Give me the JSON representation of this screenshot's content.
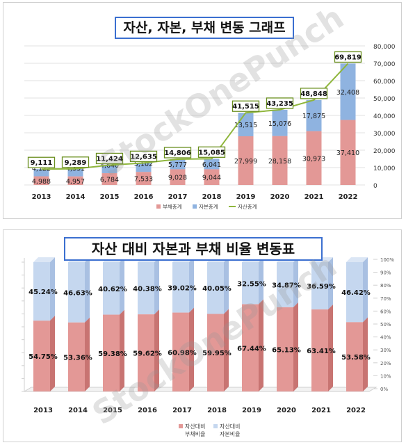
{
  "watermark": "StockOnePunch",
  "chart_data": [
    {
      "type": "bar",
      "stacked": true,
      "title": "자산, 자본, 부채 변동 그래프",
      "categories": [
        "2013",
        "2014",
        "2015",
        "2016",
        "2017",
        "2018",
        "2019",
        "2020",
        "2021",
        "2022"
      ],
      "ylim": [
        0,
        80000
      ],
      "yticks": [
        "0",
        "10,000",
        "20,000",
        "30,000",
        "40,000",
        "50,000",
        "60,000",
        "70,000",
        "80,000"
      ],
      "grid": true,
      "legend_position": "bottom",
      "series": [
        {
          "name": "부채총계",
          "kind": "bar",
          "color": "#e39896",
          "values": [
            4988,
            4957,
            6784,
            7533,
            9028,
            9044,
            27999,
            28158,
            30973,
            37410
          ],
          "labels": [
            "4,988",
            "4,957",
            "6,784",
            "7,533",
            "9,028",
            "9,044",
            "27,999",
            "28,158",
            "30,973",
            "37,410"
          ]
        },
        {
          "name": "자본총계",
          "kind": "bar",
          "color": "#8fb3e0",
          "values": [
            4122,
            4331,
            4640,
            5102,
            5777,
            6041,
            13515,
            15076,
            17875,
            32408
          ],
          "labels": [
            "4,122",
            "4,331",
            "4,640",
            "5,102",
            "5,777",
            "6,041",
            "13,515",
            "15,076",
            "17,875",
            "32,408"
          ]
        },
        {
          "name": "자산총계",
          "kind": "line",
          "color": "#8fb63c",
          "values": [
            9111,
            9289,
            11424,
            12635,
            14806,
            15085,
            41515,
            43235,
            48848,
            69819
          ],
          "labels": [
            "9,111",
            "9,289",
            "11,424",
            "12,635",
            "14,806",
            "15,085",
            "41,515",
            "43,235",
            "48,848",
            "69,819"
          ]
        }
      ]
    },
    {
      "type": "bar",
      "stacked": true,
      "title": "자산 대비 자본과 부채 비율 변동표",
      "categories": [
        "2013",
        "2014",
        "2015",
        "2016",
        "2017",
        "2018",
        "2019",
        "2020",
        "2021",
        "2022"
      ],
      "ylim": [
        0,
        100
      ],
      "yticks": [
        "0%",
        "10%",
        "20%",
        "30%",
        "40%",
        "50%",
        "60%",
        "70%",
        "80%",
        "90%",
        "100%"
      ],
      "legend_position": "bottom",
      "series": [
        {
          "name": "자산대비",
          "sub": "부채비율",
          "color": "#e39896",
          "values": [
            54.75,
            53.36,
            59.38,
            59.62,
            60.98,
            59.95,
            67.44,
            65.13,
            63.41,
            53.58
          ],
          "labels": [
            "54.75%",
            "53.36%",
            "59.38%",
            "59.62%",
            "60.98%",
            "59.95%",
            "67.44%",
            "65.13%",
            "63.41%",
            "53.58%"
          ]
        },
        {
          "name": "자산대비",
          "sub": "자본비율",
          "color": "#c5d7ef",
          "values": [
            45.24,
            46.63,
            40.62,
            40.38,
            39.02,
            40.05,
            32.55,
            34.87,
            36.59,
            46.42
          ],
          "labels": [
            "45.24%",
            "46.63%",
            "40.62%",
            "40.38%",
            "39.02%",
            "40.05%",
            "32.55%",
            "34.87%",
            "36.59%",
            "46.42%"
          ]
        }
      ]
    }
  ]
}
